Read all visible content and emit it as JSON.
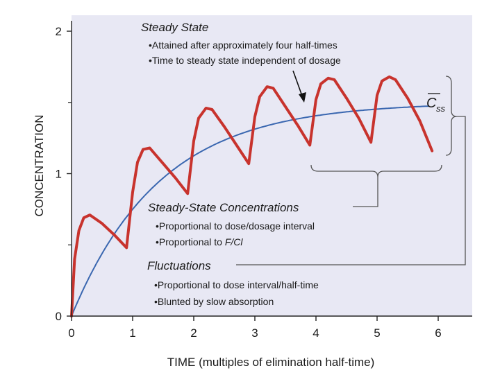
{
  "chart_data": {
    "type": "line",
    "xlabel": "TIME (multiples of elimination half-time)",
    "ylabel": "CONCENTRATION",
    "xlim": [
      0,
      6.6
    ],
    "ylim": [
      0,
      2.1
    ],
    "x_ticks": [
      "0",
      "1",
      "2",
      "3",
      "4",
      "5",
      "6"
    ],
    "y_ticks": [
      "0",
      "1",
      "2"
    ],
    "y_ticks_minor": [
      0.5,
      1.5
    ],
    "grid": false,
    "background": "#e8e8f4",
    "series": [
      {
        "color": "#c8332d",
        "description_points": [
          [
            0,
            0
          ],
          [
            0.05,
            0.4
          ],
          [
            0.12,
            0.6
          ],
          [
            0.2,
            0.69
          ],
          [
            0.3,
            0.71
          ],
          [
            0.5,
            0.65
          ],
          [
            0.7,
            0.57
          ],
          [
            0.9,
            0.48
          ],
          [
            1.0,
            0.87
          ],
          [
            1.08,
            1.08
          ],
          [
            1.17,
            1.17
          ],
          [
            1.28,
            1.18
          ],
          [
            1.5,
            1.07
          ],
          [
            1.7,
            0.97
          ],
          [
            1.9,
            0.86
          ],
          [
            2.0,
            1.23
          ],
          [
            2.08,
            1.39
          ],
          [
            2.2,
            1.46
          ],
          [
            2.3,
            1.45
          ],
          [
            2.5,
            1.33
          ],
          [
            2.7,
            1.2
          ],
          [
            2.9,
            1.07
          ],
          [
            3.0,
            1.4
          ],
          [
            3.08,
            1.54
          ],
          [
            3.2,
            1.61
          ],
          [
            3.3,
            1.6
          ],
          [
            3.5,
            1.47
          ],
          [
            3.7,
            1.34
          ],
          [
            3.9,
            1.2
          ],
          [
            4.0,
            1.52
          ],
          [
            4.08,
            1.63
          ],
          [
            4.2,
            1.67
          ],
          [
            4.3,
            1.66
          ],
          [
            4.5,
            1.53
          ],
          [
            4.7,
            1.39
          ],
          [
            4.9,
            1.22
          ],
          [
            5.0,
            1.55
          ],
          [
            5.08,
            1.65
          ],
          [
            5.2,
            1.68
          ],
          [
            5.3,
            1.66
          ],
          [
            5.5,
            1.53
          ],
          [
            5.7,
            1.37
          ],
          [
            5.9,
            1.16
          ]
        ]
      },
      {
        "color": "#3a67b0",
        "function": "1.5 * (1 - 2^(-t))",
        "x_range": [
          0,
          5.85
        ]
      }
    ],
    "css_value": 1.5
  },
  "annotations": {
    "steady_state_title": "Steady State",
    "steady_state_bullets": [
      "•Attained after approximately four half-times",
      "•Time to steady state independent of dosage"
    ],
    "css_label": "C",
    "css_subscript": "ss",
    "concentrations_title": "Steady-State Concentrations",
    "concentrations_bullet_1": "•Proportional to dose/dosage interval",
    "concentrations_bullet_2_prefix": "•Proportional to ",
    "concentrations_bullet_2_italic": "F/Cl",
    "fluctuations_title": "Fluctuations",
    "fluctuations_bullets": [
      "•Proportional to dose interval/half-time",
      "•Blunted by slow absorption"
    ]
  }
}
